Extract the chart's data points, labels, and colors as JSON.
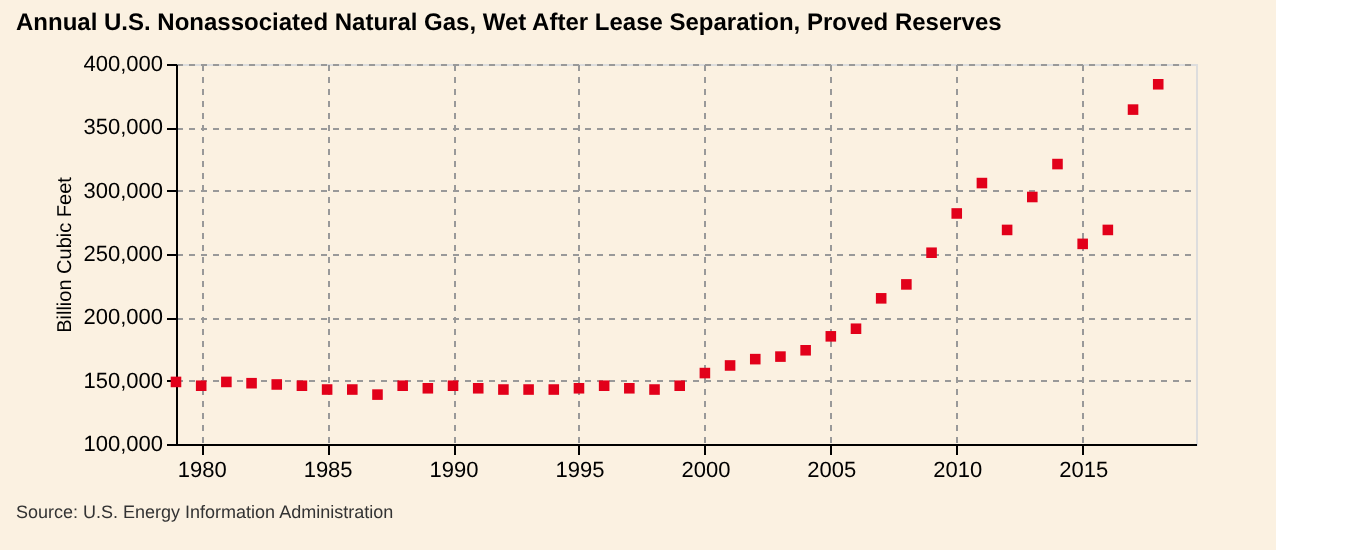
{
  "chart_data": {
    "type": "scatter",
    "title": "Annual U.S. Nonassociated Natural Gas, Wet After Lease Separation, Proved Reserves",
    "ylabel": "Billion Cubic Feet",
    "x": [
      1979,
      1980,
      1981,
      1982,
      1983,
      1984,
      1985,
      1986,
      1987,
      1988,
      1989,
      1990,
      1991,
      1992,
      1993,
      1994,
      1995,
      1996,
      1997,
      1998,
      1999,
      2000,
      2001,
      2002,
      2003,
      2004,
      2005,
      2006,
      2007,
      2008,
      2009,
      2010,
      2011,
      2012,
      2013,
      2014,
      2015,
      2016,
      2017,
      2018
    ],
    "series": [
      {
        "color": "#e2001a",
        "values": [
          149000,
          146000,
          149000,
          148000,
          147000,
          146000,
          143000,
          143000,
          139000,
          146000,
          144000,
          146000,
          144000,
          143000,
          143000,
          143000,
          144000,
          146000,
          144000,
          143000,
          146000,
          156000,
          162000,
          167000,
          169000,
          174000,
          185000,
          191000,
          215000,
          226000,
          251000,
          282000,
          306000,
          269000,
          295000,
          321000,
          258000,
          269000,
          364000,
          384000
        ]
      }
    ],
    "xlim": [
      1979,
      2019.5
    ],
    "xticks": [
      1980,
      1985,
      1990,
      1995,
      2000,
      2005,
      2010,
      2015
    ],
    "ylim": [
      100000,
      400000
    ],
    "yticks": [
      {
        "value": 100000,
        "label": "100,000"
      },
      {
        "value": 150000,
        "label": "150,000"
      },
      {
        "value": 200000,
        "label": "200,000"
      },
      {
        "value": 250000,
        "label": "250,000"
      },
      {
        "value": 300000,
        "label": "300,000"
      },
      {
        "value": 350000,
        "label": "350,000"
      },
      {
        "value": 400000,
        "label": "400,000"
      }
    ],
    "grid": true,
    "marker": "square",
    "annotations": [
      "Source: U.S. Energy Information Administration"
    ]
  }
}
